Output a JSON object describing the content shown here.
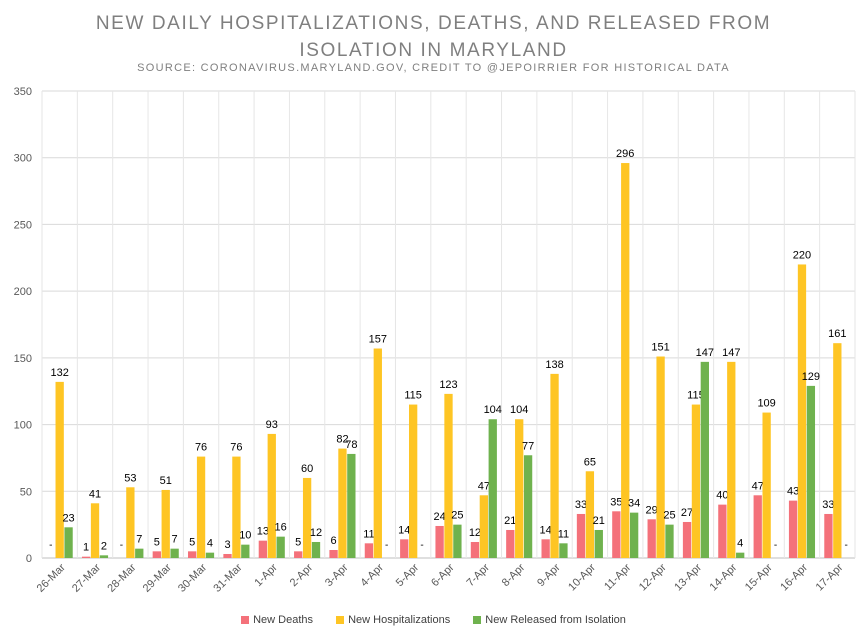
{
  "chart_data": {
    "type": "bar",
    "title_line1": "NEW DAILY HOSPITALIZATIONS, DEATHS, AND RELEASED FROM",
    "title_line2": "ISOLATION IN MARYLAND",
    "subtitle": "SOURCE: CORONAVIRUS.MARYLAND.GOV, CREDIT TO @JEPOIRRIER FOR HISTORICAL DATA",
    "ylim": [
      0,
      350
    ],
    "yticks": [
      0,
      50,
      100,
      150,
      200,
      250,
      300,
      350
    ],
    "categories": [
      "26-Mar",
      "27-Mar",
      "28-Mar",
      "29-Mar",
      "30-Mar",
      "31-Mar",
      "1-Apr",
      "2-Apr",
      "3-Apr",
      "4-Apr",
      "5-Apr",
      "6-Apr",
      "7-Apr",
      "8-Apr",
      "9-Apr",
      "10-Apr",
      "11-Apr",
      "12-Apr",
      "13-Apr",
      "14-Apr",
      "15-Apr",
      "16-Apr",
      "17-Apr"
    ],
    "series": [
      {
        "name": "New Deaths",
        "color": "#f4717a",
        "values": [
          null,
          1,
          null,
          5,
          5,
          3,
          13,
          5,
          6,
          11,
          14,
          24,
          12,
          21,
          14,
          33,
          35,
          29,
          27,
          40,
          47,
          43,
          33
        ]
      },
      {
        "name": "New Hospitalizations",
        "color": "#fec524",
        "values": [
          132,
          41,
          53,
          51,
          76,
          76,
          93,
          60,
          82,
          157,
          115,
          123,
          47,
          104,
          138,
          65,
          296,
          151,
          115,
          147,
          109,
          220,
          161
        ]
      },
      {
        "name": "New Released from Isolation",
        "color": "#6fb24e",
        "values": [
          23,
          2,
          7,
          7,
          4,
          10,
          16,
          12,
          78,
          null,
          null,
          25,
          104,
          77,
          11,
          21,
          34,
          25,
          147,
          4,
          null,
          129,
          null
        ]
      }
    ],
    "missing_label": "-",
    "legend_position": "bottom"
  }
}
